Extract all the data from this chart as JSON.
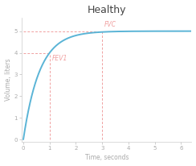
{
  "title": "Healthy",
  "xlabel": "Time, seconds",
  "ylabel": "Volume, liters",
  "fvc": 5.0,
  "fev1": 4.0,
  "fev1_time": 1.0,
  "fvc_time": 3.0,
  "xlim": [
    -0.05,
    6.4
  ],
  "ylim": [
    -0.1,
    5.6
  ],
  "xticks": [
    0,
    1,
    2,
    3,
    4,
    5,
    6
  ],
  "yticks": [
    0,
    1,
    2,
    3,
    4,
    5
  ],
  "curve_color": "#5ab4d6",
  "dashed_color": "#f0a0a0",
  "bg_color": "#ffffff",
  "title_fontsize": 9,
  "label_fontsize": 5.5,
  "tick_fontsize": 5,
  "annotation_fontsize": 5.5,
  "curve_lw": 1.4,
  "dash_lw": 0.7
}
